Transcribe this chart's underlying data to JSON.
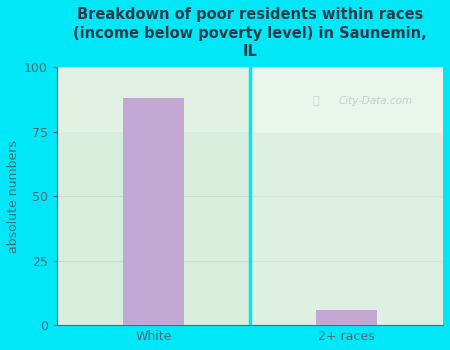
{
  "title": "Breakdown of poor residents within races\n(income below poverty level) in Saunemin,\nIL",
  "categories": [
    "White",
    "2+ races"
  ],
  "values": [
    88,
    6
  ],
  "bar_color": "#c4a8d4",
  "ylabel": "absolute numbers",
  "ylim": [
    0,
    100
  ],
  "yticks": [
    0,
    25,
    50,
    75,
    100
  ],
  "bg_outer": "#00e8f8",
  "bg_plot": "#d8eedd",
  "title_color": "#2a3a4a",
  "axis_color": "#4a6a7a",
  "bar_width": 0.32,
  "watermark": "City-Data.com",
  "watermark_color": "#b8ccd4",
  "grid_color": "#c8dfc8",
  "divider_color": "#00e8f8"
}
